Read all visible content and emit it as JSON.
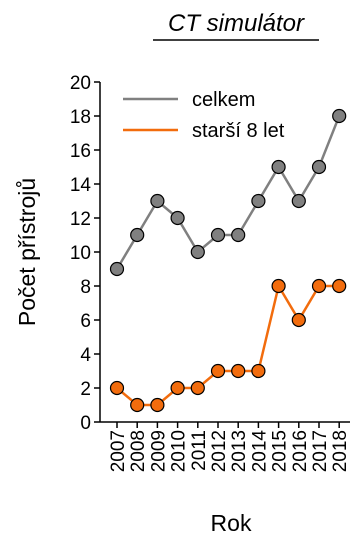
{
  "chart_data": {
    "type": "line",
    "title": "CT simulátor",
    "xlabel": "Rok",
    "ylabel": "Počet přístrojů",
    "categories": [
      "2007",
      "2008",
      "2009",
      "2010",
      "2011",
      "2012",
      "2013",
      "2014",
      "2015",
      "2016",
      "2017",
      "2018"
    ],
    "ylim": [
      0,
      20
    ],
    "yticks": [
      0,
      2,
      4,
      6,
      8,
      10,
      12,
      14,
      16,
      18,
      20
    ],
    "grid": false,
    "legend_position": "top-left",
    "series": [
      {
        "name": "celkem",
        "color": "#808080",
        "values": [
          9,
          11,
          13,
          12,
          10,
          11,
          11,
          13,
          15,
          13,
          15,
          18
        ]
      },
      {
        "name": "starší 8 let",
        "color": "#f26c0d",
        "values": [
          2,
          1,
          1,
          2,
          2,
          3,
          3,
          3,
          8,
          6,
          8,
          8
        ]
      }
    ]
  }
}
